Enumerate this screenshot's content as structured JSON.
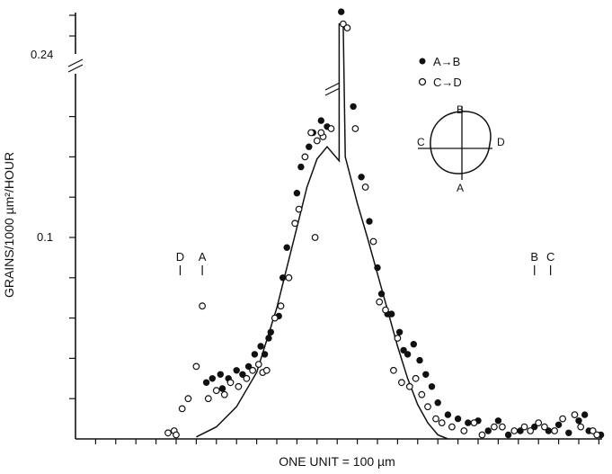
{
  "chart_data": {
    "type": "scatter",
    "xlabel": "ONE UNIT = 100 µm",
    "ylabel": "GRAINS/1000 µm²/HOUR",
    "x_range": [
      0,
      28
    ],
    "y_range": [
      0,
      0.2
    ],
    "x_tick_interval": 1,
    "y_tick_interval": 0.02,
    "y_tick_labels": [
      {
        "value": 0.1,
        "label": "0.1"
      },
      {
        "value": 0.24,
        "label": "0.24"
      }
    ],
    "y_axis_break": true,
    "grid": false,
    "legend_position": "top-right",
    "series": [
      {
        "name": "A→B",
        "marker": "filled-circle",
        "points": [
          [
            6.5,
            0.028
          ],
          [
            6.8,
            0.03
          ],
          [
            7.2,
            0.032
          ],
          [
            7.3,
            0.025
          ],
          [
            7.6,
            0.03
          ],
          [
            8.0,
            0.034
          ],
          [
            8.3,
            0.032
          ],
          [
            8.6,
            0.036
          ],
          [
            8.9,
            0.042
          ],
          [
            9.2,
            0.046
          ],
          [
            9.4,
            0.042
          ],
          [
            9.6,
            0.05
          ],
          [
            9.7,
            0.053
          ],
          [
            10.1,
            0.061
          ],
          [
            10.3,
            0.08
          ],
          [
            10.5,
            0.095
          ],
          [
            11.0,
            0.122
          ],
          [
            11.2,
            0.135
          ],
          [
            11.6,
            0.145
          ],
          [
            11.8,
            0.152
          ],
          [
            12.2,
            0.158
          ],
          [
            12.5,
            0.155
          ],
          [
            13.2,
            0.212
          ],
          [
            13.8,
            0.165
          ],
          [
            14.2,
            0.13
          ],
          [
            14.6,
            0.108
          ],
          [
            15.0,
            0.085
          ],
          [
            15.2,
            0.072
          ],
          [
            15.5,
            0.062
          ],
          [
            15.7,
            0.062
          ],
          [
            16.1,
            0.053
          ],
          [
            16.3,
            0.044
          ],
          [
            16.5,
            0.042
          ],
          [
            16.8,
            0.047
          ],
          [
            17.1,
            0.039
          ],
          [
            17.4,
            0.032
          ],
          [
            17.7,
            0.026
          ],
          [
            18.0,
            0.018
          ],
          [
            18.5,
            0.012
          ],
          [
            19.0,
            0.01
          ],
          [
            19.5,
            0.008
          ],
          [
            20.0,
            0.009
          ],
          [
            20.5,
            0.004
          ],
          [
            21.0,
            0.009
          ],
          [
            21.5,
            0.002
          ],
          [
            22.1,
            0.004
          ],
          [
            22.8,
            0.006
          ],
          [
            23.5,
            0.004
          ],
          [
            24.0,
            0.007
          ],
          [
            24.5,
            0.003
          ],
          [
            25.0,
            0.009
          ],
          [
            25.3,
            0.012
          ],
          [
            25.5,
            0.004
          ],
          [
            26.1,
            0.002
          ]
        ]
      },
      {
        "name": "C→D",
        "marker": "open-circle",
        "points": [
          [
            4.6,
            0.003
          ],
          [
            4.9,
            0.004
          ],
          [
            5.0,
            0.002
          ],
          [
            5.3,
            0.015
          ],
          [
            5.6,
            0.02
          ],
          [
            6.0,
            0.036
          ],
          [
            6.3,
            0.066
          ],
          [
            6.6,
            0.02
          ],
          [
            7.0,
            0.024
          ],
          [
            7.4,
            0.022
          ],
          [
            7.7,
            0.028
          ],
          [
            8.1,
            0.026
          ],
          [
            8.5,
            0.03
          ],
          [
            8.8,
            0.034
          ],
          [
            9.1,
            0.037
          ],
          [
            9.3,
            0.033
          ],
          [
            9.5,
            0.034
          ],
          [
            9.9,
            0.06
          ],
          [
            10.2,
            0.066
          ],
          [
            10.6,
            0.08
          ],
          [
            10.9,
            0.107
          ],
          [
            11.1,
            0.114
          ],
          [
            11.4,
            0.14
          ],
          [
            11.7,
            0.152
          ],
          [
            12.0,
            0.148
          ],
          [
            12.3,
            0.15
          ],
          [
            12.7,
            0.154
          ],
          [
            12.2,
            0.152
          ],
          [
            11.9,
            0.1
          ],
          [
            13.3,
            0.206
          ],
          [
            13.5,
            0.204
          ],
          [
            13.9,
            0.154
          ],
          [
            14.4,
            0.125
          ],
          [
            14.8,
            0.098
          ],
          [
            15.1,
            0.068
          ],
          [
            15.4,
            0.064
          ],
          [
            15.8,
            0.034
          ],
          [
            16.0,
            0.05
          ],
          [
            16.2,
            0.028
          ],
          [
            16.6,
            0.026
          ],
          [
            16.9,
            0.03
          ],
          [
            17.2,
            0.022
          ],
          [
            17.5,
            0.016
          ],
          [
            17.9,
            0.01
          ],
          [
            18.2,
            0.008
          ],
          [
            18.7,
            0.006
          ],
          [
            19.3,
            0.004
          ],
          [
            19.8,
            0.008
          ],
          [
            20.2,
            0.002
          ],
          [
            20.8,
            0.006
          ],
          [
            21.2,
            0.006
          ],
          [
            21.8,
            0.004
          ],
          [
            22.3,
            0.006
          ],
          [
            22.6,
            0.004
          ],
          [
            23.0,
            0.008
          ],
          [
            23.3,
            0.006
          ],
          [
            23.8,
            0.004
          ],
          [
            24.2,
            0.01
          ],
          [
            24.8,
            0.012
          ],
          [
            25.1,
            0.006
          ],
          [
            25.7,
            0.004
          ],
          [
            25.9,
            0.002
          ]
        ]
      }
    ],
    "fit_curve": [
      [
        6.0,
        0.001
      ],
      [
        7.0,
        0.006
      ],
      [
        8.0,
        0.016
      ],
      [
        9.0,
        0.033
      ],
      [
        10.0,
        0.065
      ],
      [
        10.5,
        0.085
      ],
      [
        11.0,
        0.105
      ],
      [
        11.5,
        0.125
      ],
      [
        12.0,
        0.139
      ],
      [
        12.5,
        0.145
      ],
      [
        13.1,
        0.138
      ],
      [
        13.1,
        0.206
      ],
      [
        13.3,
        0.206
      ],
      [
        13.4,
        0.14
      ],
      [
        14.0,
        0.117
      ],
      [
        14.5,
        0.1
      ],
      [
        15.0,
        0.082
      ],
      [
        15.5,
        0.064
      ],
      [
        16.0,
        0.046
      ],
      [
        16.5,
        0.03
      ],
      [
        17.0,
        0.017
      ],
      [
        17.5,
        0.008
      ],
      [
        18.0,
        0.002
      ],
      [
        18.5,
        0.0
      ]
    ],
    "markers": [
      {
        "label": "D",
        "x": 5.2
      },
      {
        "label": "A",
        "x": 6.3
      },
      {
        "label": "B",
        "x": 22.8
      },
      {
        "label": "C",
        "x": 23.6
      }
    ],
    "inset_labels": {
      "top": "B",
      "bottom": "A",
      "left": "C",
      "right": "D"
    }
  }
}
